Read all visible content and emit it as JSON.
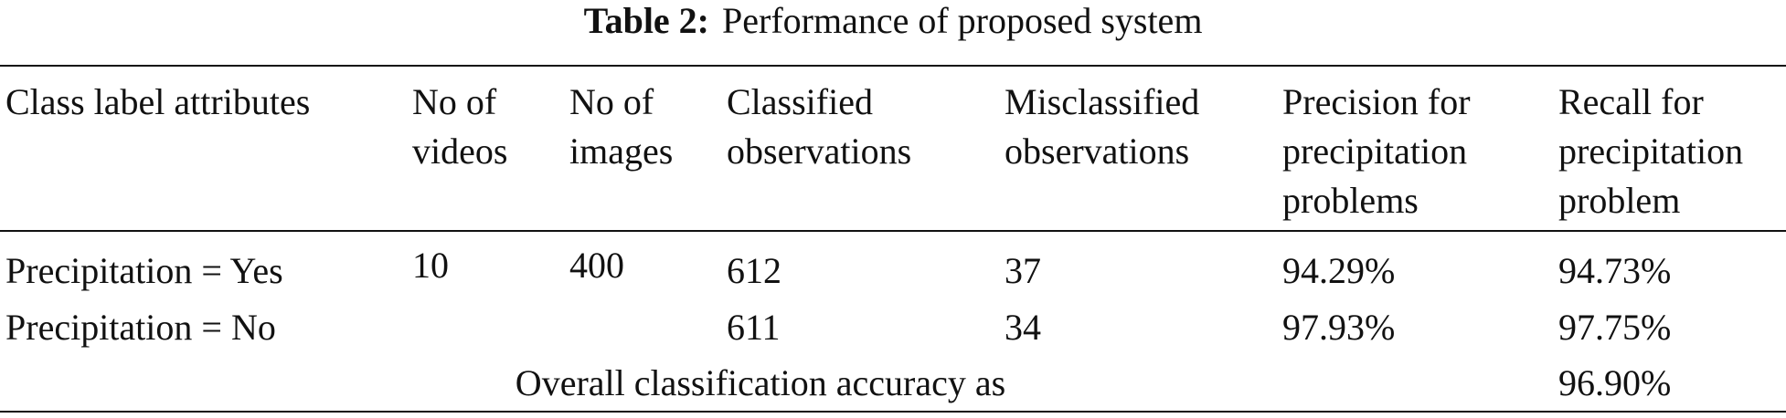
{
  "caption": {
    "label": "Table 2:",
    "text": "Performance of proposed system"
  },
  "table": {
    "headers": [
      [
        "Class label attributes"
      ],
      [
        "No of",
        "videos"
      ],
      [
        "No of",
        "images"
      ],
      [
        "Classified",
        "observations"
      ],
      [
        "Misclassified",
        "observations"
      ],
      [
        "Precision for",
        "precipitation",
        "problems"
      ],
      [
        "Recall for",
        "precipitation",
        "problem"
      ]
    ],
    "rows": [
      [
        "Precipitation = Yes",
        "10",
        "400",
        "612",
        "37",
        "94.29%",
        "94.73%"
      ],
      [
        "Precipitation = No",
        null,
        null,
        "611",
        "34",
        "97.93%",
        "97.75%"
      ]
    ],
    "footer": {
      "label": "Overall classification accuracy as",
      "value": "96.90%"
    }
  }
}
